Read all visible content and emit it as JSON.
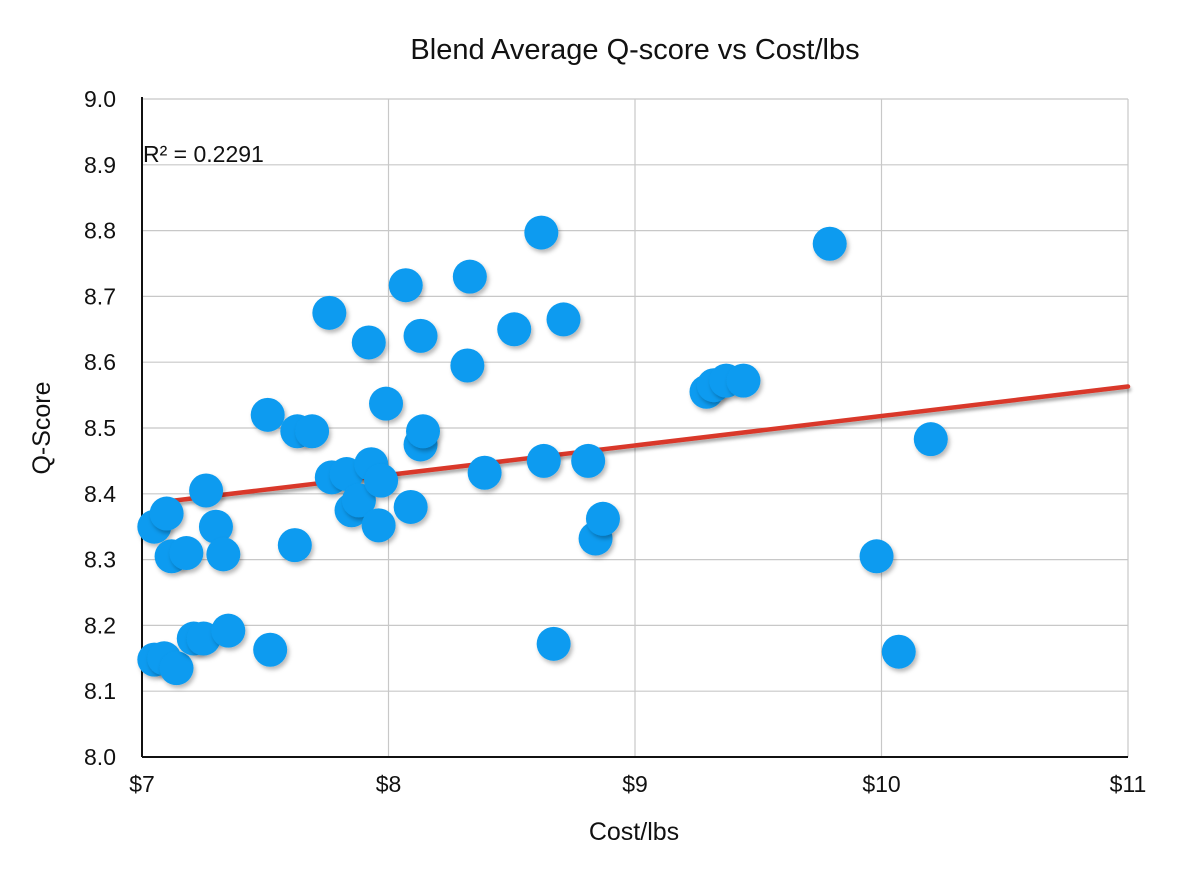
{
  "chart_data": {
    "type": "scatter",
    "title": "Blend Average Q-score vs Cost/lbs",
    "xlabel": "Cost/lbs",
    "ylabel": "Q-Score",
    "xlim": [
      7,
      11
    ],
    "ylim": [
      8.0,
      9.0
    ],
    "x_ticks": [
      7,
      8,
      9,
      10,
      11
    ],
    "x_tick_labels": [
      "$7",
      "$8",
      "$9",
      "$10",
      "$11"
    ],
    "y_ticks": [
      8.0,
      8.1,
      8.2,
      8.3,
      8.4,
      8.5,
      8.6,
      8.7,
      8.8,
      8.9,
      9.0
    ],
    "y_tick_labels": [
      "8.0",
      "8.1",
      "8.2",
      "8.3",
      "8.4",
      "8.5",
      "8.6",
      "8.7",
      "8.8",
      "8.9",
      "9.0"
    ],
    "grid": true,
    "legend": "none",
    "annotation": "R² = 0.2291",
    "trendline": {
      "type": "linear",
      "x": [
        7.07,
        11.0
      ],
      "y": [
        8.387,
        8.563
      ],
      "color": "#d9382b"
    },
    "marker_color": "#0b9bf0",
    "points": [
      {
        "x": 7.05,
        "y": 8.35
      },
      {
        "x": 7.1,
        "y": 8.37
      },
      {
        "x": 7.12,
        "y": 8.305
      },
      {
        "x": 7.18,
        "y": 8.31
      },
      {
        "x": 7.05,
        "y": 8.148
      },
      {
        "x": 7.09,
        "y": 8.15
      },
      {
        "x": 7.14,
        "y": 8.135
      },
      {
        "x": 7.21,
        "y": 8.18
      },
      {
        "x": 7.25,
        "y": 8.18
      },
      {
        "x": 7.35,
        "y": 8.192
      },
      {
        "x": 7.26,
        "y": 8.405
      },
      {
        "x": 7.3,
        "y": 8.35
      },
      {
        "x": 7.33,
        "y": 8.308
      },
      {
        "x": 7.52,
        "y": 8.163
      },
      {
        "x": 7.51,
        "y": 8.52
      },
      {
        "x": 7.63,
        "y": 8.495
      },
      {
        "x": 7.69,
        "y": 8.495
      },
      {
        "x": 7.62,
        "y": 8.322
      },
      {
        "x": 7.76,
        "y": 8.675
      },
      {
        "x": 7.77,
        "y": 8.425
      },
      {
        "x": 7.83,
        "y": 8.43
      },
      {
        "x": 7.85,
        "y": 8.375
      },
      {
        "x": 7.88,
        "y": 8.39
      },
      {
        "x": 7.92,
        "y": 8.63
      },
      {
        "x": 7.93,
        "y": 8.445
      },
      {
        "x": 7.96,
        "y": 8.352
      },
      {
        "x": 7.97,
        "y": 8.42
      },
      {
        "x": 7.99,
        "y": 8.537
      },
      {
        "x": 8.07,
        "y": 8.717
      },
      {
        "x": 8.09,
        "y": 8.38
      },
      {
        "x": 8.13,
        "y": 8.64
      },
      {
        "x": 8.13,
        "y": 8.475
      },
      {
        "x": 8.14,
        "y": 8.495
      },
      {
        "x": 8.32,
        "y": 8.595
      },
      {
        "x": 8.33,
        "y": 8.73
      },
      {
        "x": 8.39,
        "y": 8.432
      },
      {
        "x": 8.51,
        "y": 8.65
      },
      {
        "x": 8.62,
        "y": 8.797
      },
      {
        "x": 8.63,
        "y": 8.45
      },
      {
        "x": 8.67,
        "y": 8.172
      },
      {
        "x": 8.71,
        "y": 8.665
      },
      {
        "x": 8.81,
        "y": 8.45
      },
      {
        "x": 8.84,
        "y": 8.332
      },
      {
        "x": 8.87,
        "y": 8.362
      },
      {
        "x": 9.29,
        "y": 8.555
      },
      {
        "x": 9.32,
        "y": 8.565
      },
      {
        "x": 9.37,
        "y": 8.572
      },
      {
        "x": 9.44,
        "y": 8.572
      },
      {
        "x": 9.79,
        "y": 8.78
      },
      {
        "x": 9.98,
        "y": 8.305
      },
      {
        "x": 10.07,
        "y": 8.16
      },
      {
        "x": 10.2,
        "y": 8.483
      }
    ]
  }
}
